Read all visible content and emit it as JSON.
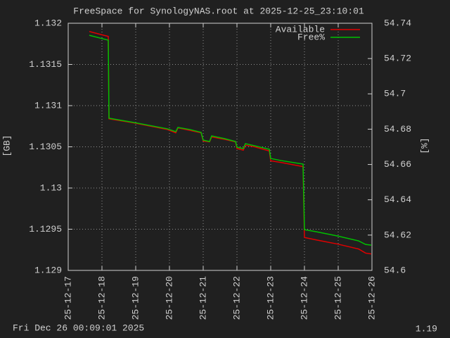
{
  "chart_data": {
    "type": "line",
    "title": "FreeSpace for SynologyNAS.root  at 2025-12-25_23:10:01",
    "ylabel": "[GB]",
    "y2label": "[%]",
    "footer": "Fri Dec 26 00:09:01 2025",
    "version": "1.19",
    "grid": true,
    "legend": "top-right",
    "xlim": [
      "25-12-17",
      "25-12-26"
    ],
    "xticks": [
      "25-12-17",
      "25-12-18",
      "25-12-19",
      "25-12-20",
      "25-12-21",
      "25-12-22",
      "25-12-23",
      "25-12-24",
      "25-12-25",
      "25-12-26"
    ],
    "ylim": [
      1.129,
      1.132
    ],
    "yticks": [
      1.129,
      1.1295,
      1.13,
      1.1305,
      1.131,
      1.1315,
      1.132
    ],
    "y2lim": [
      54.6,
      54.74
    ],
    "y2ticks": [
      54.6,
      54.62,
      54.64,
      54.66,
      54.68,
      54.7,
      54.72,
      54.74
    ],
    "x": [
      "25-12-17 15:00",
      "25-12-18 04:30",
      "25-12-18 05:00",
      "25-12-18 22:30",
      "25-12-19 22:30",
      "25-12-20 04:30",
      "25-12-20 06:00",
      "25-12-20 14:30",
      "25-12-20 22:30",
      "25-12-21 00:00",
      "25-12-21 04:30",
      "25-12-21 06:00",
      "25-12-21 15:30",
      "25-12-21 23:00",
      "25-12-22 00:00",
      "25-12-22 04:30",
      "25-12-22 06:00",
      "25-12-22 12:30",
      "25-12-22 23:00",
      "25-12-23 00:00",
      "25-12-23 07:30",
      "25-12-23 23:00",
      "25-12-24 00:00",
      "25-12-24 08:30",
      "25-12-24 23:30",
      "25-12-25 14:30",
      "25-12-25 19:30",
      "25-12-25 23:30"
    ],
    "series": [
      {
        "name": "Available",
        "color": "#e00000",
        "axis": "y",
        "values": [
          1.1319,
          1.13184,
          1.13084,
          1.13079,
          1.13071,
          1.13067,
          1.13073,
          1.1307,
          1.13067,
          1.13057,
          1.13056,
          1.13062,
          1.13059,
          1.13056,
          1.13048,
          1.13046,
          1.13052,
          1.1305,
          1.13045,
          1.13033,
          1.13031,
          1.13026,
          1.1294,
          1.12937,
          1.12932,
          1.12926,
          1.12921,
          1.1292
        ]
      },
      {
        "name": "Free%",
        "color": "#00c000",
        "axis": "y2",
        "values": [
          54.7332,
          54.7304,
          54.6862,
          54.6838,
          54.6802,
          54.6786,
          54.681,
          54.6798,
          54.6782,
          54.6738,
          54.673,
          54.6762,
          54.6746,
          54.673,
          54.6698,
          54.669,
          54.6718,
          54.6706,
          54.6686,
          54.6634,
          54.6622,
          54.6602,
          54.6231,
          54.6219,
          54.6195,
          54.6167,
          54.6147,
          54.6143
        ]
      }
    ]
  }
}
